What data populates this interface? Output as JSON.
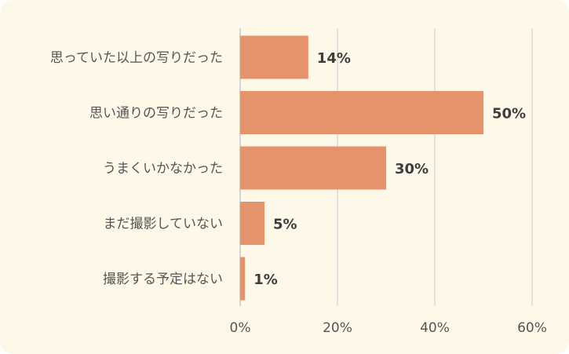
{
  "chart_data": {
    "type": "bar",
    "orientation": "horizontal",
    "categories": [
      "思っていた以上の写りだった",
      "思い通りの写りだった",
      "うまくいかなかった",
      "まだ撮影していない",
      "撮影する予定はない"
    ],
    "values": [
      14,
      50,
      30,
      5,
      1
    ],
    "data_labels": [
      "14%",
      "50%",
      "30%",
      "5%",
      "1%"
    ],
    "xlim": [
      0,
      60
    ],
    "x_ticks": [
      0,
      20,
      40,
      60
    ],
    "x_tick_labels": [
      "0%",
      "20%",
      "40%",
      "60%"
    ],
    "grid": true,
    "legend": "none",
    "bar_color": "#e5936c",
    "grid_color": "#d9d9d9",
    "background_color": "#fdf8e8",
    "title": "",
    "xlabel": "",
    "ylabel": ""
  }
}
